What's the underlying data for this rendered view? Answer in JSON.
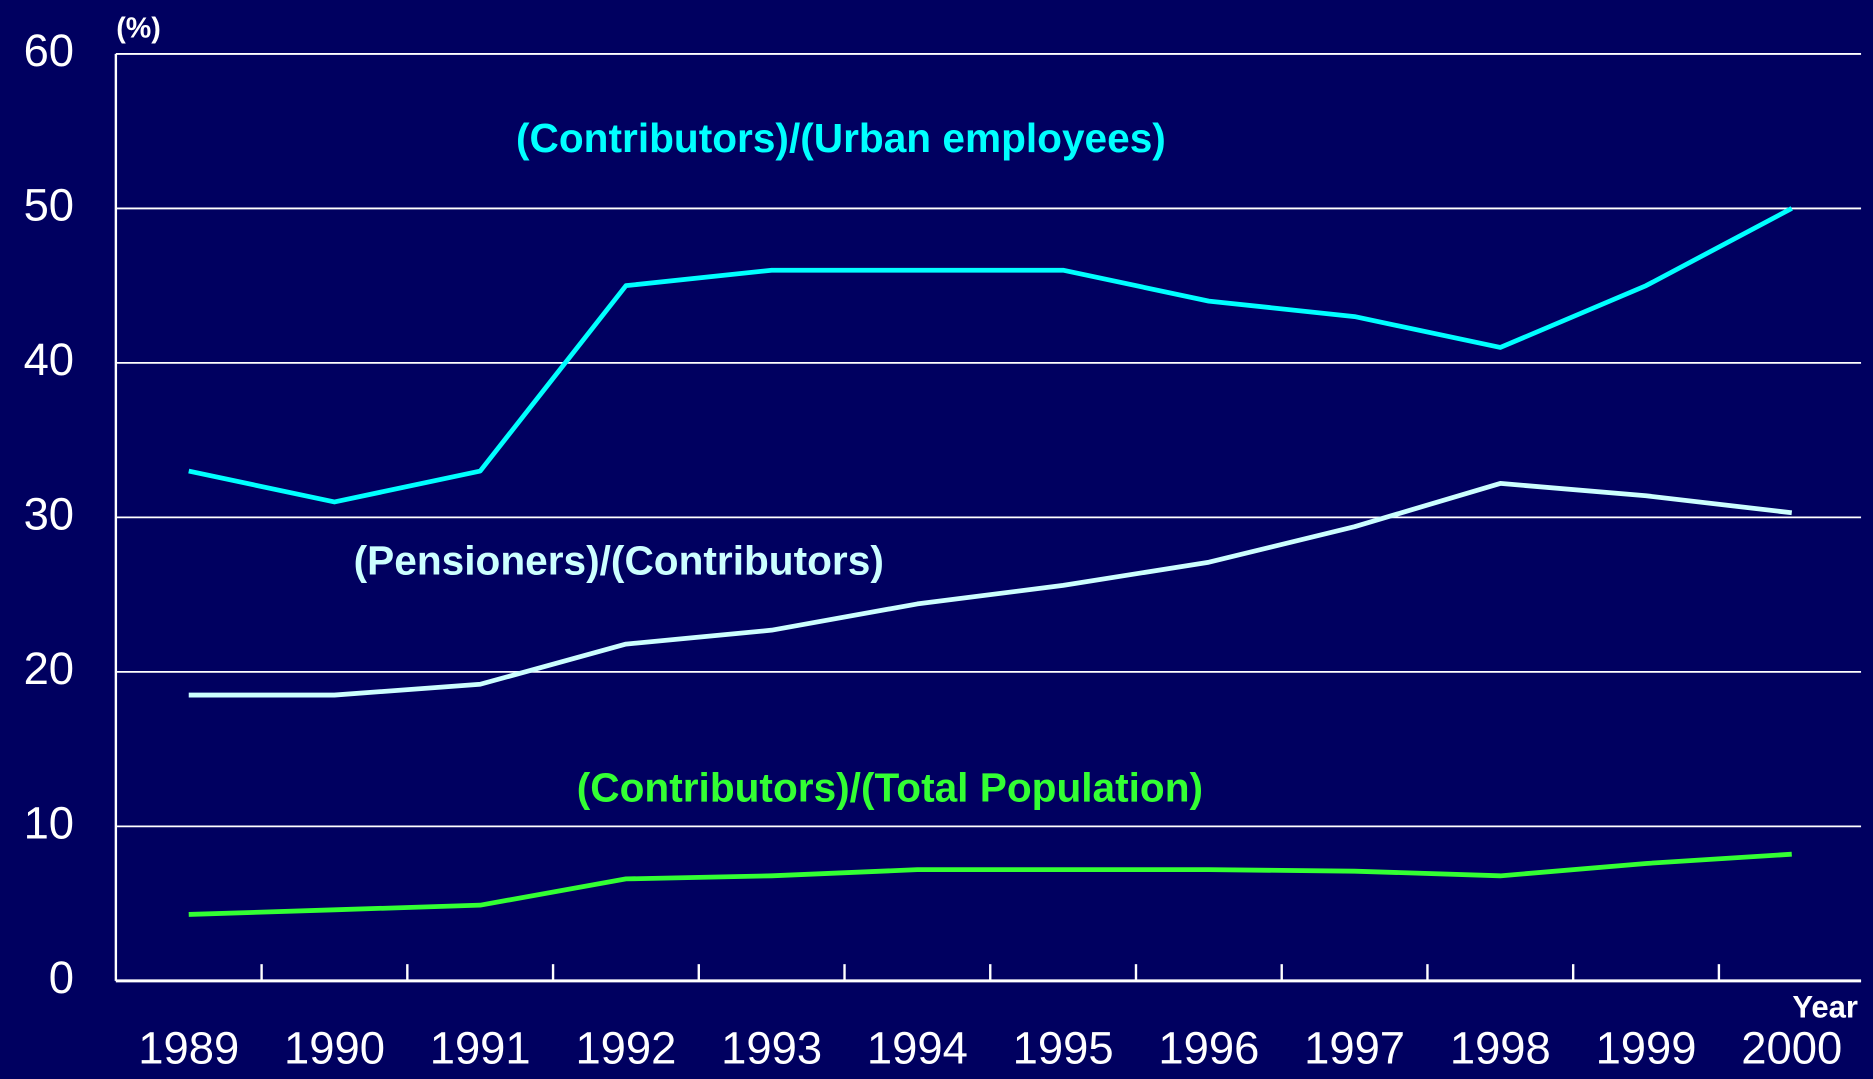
{
  "chart_data": {
    "type": "line",
    "y_label": "(%)",
    "x_label": "Year",
    "categories": [
      "1989",
      "1990",
      "1991",
      "1992",
      "1993",
      "1994",
      "1995",
      "1996",
      "1997",
      "1998",
      "1999",
      "2000"
    ],
    "series": [
      {
        "name": "(Contributors)/(Urban employees)",
        "color": "#00ffff",
        "values": [
          33,
          31,
          33,
          45,
          46,
          46,
          46,
          44,
          43,
          41,
          45,
          50
        ]
      },
      {
        "name": "(Pensioners)/(Contributors)",
        "color": "#ccffff",
        "values": [
          18.5,
          18.5,
          19.2,
          21.8,
          22.7,
          24.4,
          25.6,
          27.1,
          29.4,
          32.2,
          31.4,
          30.3
        ]
      },
      {
        "name": "(Contributors)/(Total Population)",
        "color": "#33ff33",
        "values": [
          4.3,
          4.6,
          4.9,
          6.6,
          6.8,
          7.2,
          7.2,
          7.2,
          7.1,
          6.8,
          7.6,
          8.2
        ]
      }
    ],
    "ylim": [
      0,
      60
    ],
    "yticks": [
      0,
      10,
      20,
      30,
      40,
      50,
      60
    ],
    "grid": true
  }
}
